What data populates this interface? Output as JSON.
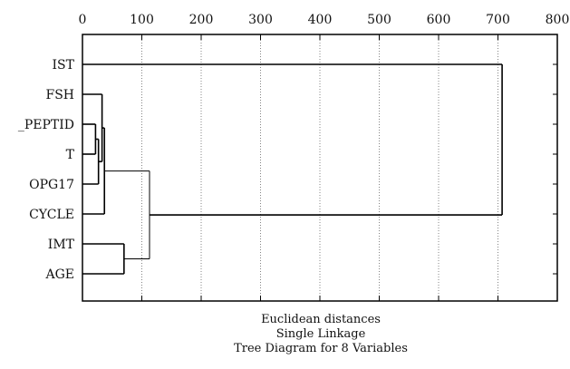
{
  "chart_data": {
    "type": "dendrogram",
    "title": "Tree Diagram for 8 Variables",
    "subtitle": "Single Linkage",
    "xlabel": "Euclidean distances",
    "xlim": [
      0,
      800
    ],
    "x_ticks": [
      "0",
      "100",
      "200",
      "300",
      "400",
      "500",
      "600",
      "700",
      "800"
    ],
    "grid_vertical": true,
    "leaves": [
      "IST",
      "FSH",
      "_PEPTID",
      "T",
      "OPG17",
      "CYCLE",
      "IMT",
      "AGE"
    ],
    "merges": [
      {
        "a": "_PEPTID",
        "b": "T",
        "distance": 22
      },
      {
        "a": "_PEPTID+T",
        "b": "OPG17",
        "distance": 27
      },
      {
        "a": "FSH",
        "b": "_PEPTID+T+OPG17",
        "distance": 33
      },
      {
        "a": "FSH+_PEPTID+T+OPG17",
        "b": "CYCLE",
        "distance": 37
      },
      {
        "a": "IMT",
        "b": "AGE",
        "distance": 70
      },
      {
        "a": "FSH..CYCLE",
        "b": "IMT+AGE",
        "distance": 113
      },
      {
        "a": "IST",
        "b": "rest",
        "distance": 707
      }
    ]
  }
}
